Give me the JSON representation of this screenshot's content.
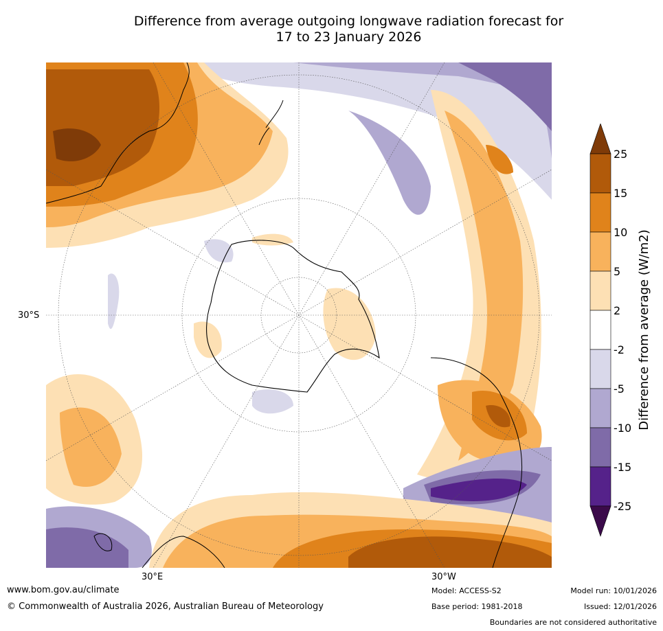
{
  "title": {
    "line1": "Difference from average outgoing longwave radiation forecast for",
    "line2": "17 to 23 January 2026"
  },
  "map": {
    "projection": "south-polar-stereographic",
    "latitude_label": "30°S",
    "longitude_labels": [
      "30°E",
      "30°W"
    ]
  },
  "colorbar": {
    "label": "Difference from average (W/m2)",
    "levels": [
      "-25",
      "-15",
      "-10",
      "-5",
      "-2",
      "2",
      "5",
      "10",
      "15",
      "25"
    ],
    "bands": [
      {
        "range": "< -25",
        "color": "#3b0a4a"
      },
      {
        "range": "-25 to -15",
        "color": "#55228a"
      },
      {
        "range": "-15 to -10",
        "color": "#7f6ba8"
      },
      {
        "range": "-10 to -5",
        "color": "#b0a8d0"
      },
      {
        "range": "-5 to -2",
        "color": "#d9d8ea"
      },
      {
        "range": "-2 to 2",
        "color": "#ffffff"
      },
      {
        "range": "2 to 5",
        "color": "#fde0b4"
      },
      {
        "range": "5 to 10",
        "color": "#f8b25c"
      },
      {
        "range": "10 to 15",
        "color": "#e0831b"
      },
      {
        "range": "15 to 25",
        "color": "#b15a0a"
      },
      {
        "range": "> 25",
        "color": "#7f3b08"
      }
    ]
  },
  "footer": {
    "website": "www.bom.gov.au/climate",
    "copyright": "© Commonwealth of Australia 2026, Australian Bureau of Meteorology",
    "model": "Model: ACCESS-S2",
    "base_period": "Base period: 1981-2018",
    "model_run": "Model run: 10/01/2026",
    "issued": "Issued: 12/01/2026",
    "disclaimer": "Boundaries are not considered authoritative"
  }
}
